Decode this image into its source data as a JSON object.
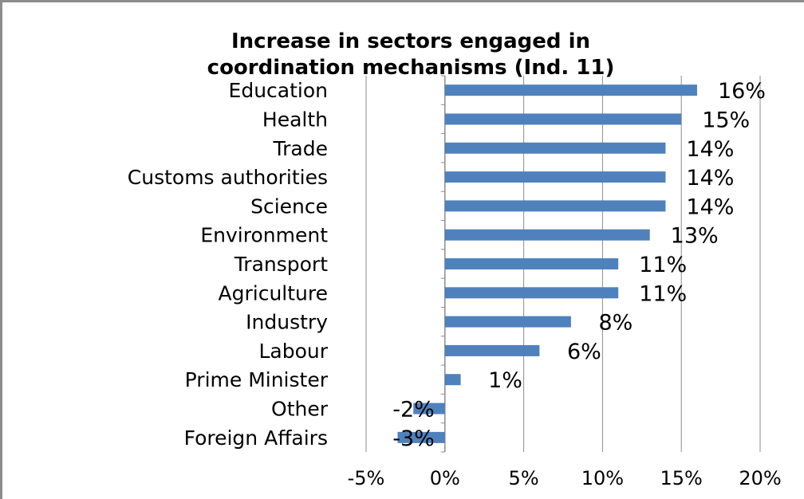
{
  "chart_data": {
    "type": "bar",
    "orientation": "horizontal",
    "title": "Increase in sectors engaged in coordination mechanisms (Ind. 11)",
    "title_lines": [
      "Increase in sectors engaged in",
      "coordination mechanisms (Ind. 11)"
    ],
    "categories": [
      "Education",
      "Health",
      "Trade",
      "Customs authorities",
      "Science",
      "Environment",
      "Transport",
      "Agriculture",
      "Industry",
      "Labour",
      "Prime Minister",
      "Other",
      "Foreign Affairs"
    ],
    "values": [
      16,
      15,
      14,
      14,
      14,
      13,
      11,
      11,
      8,
      6,
      1,
      -2,
      -3
    ],
    "value_labels": [
      "16%",
      "15%",
      "14%",
      "14%",
      "14%",
      "13%",
      "11%",
      "11%",
      "8%",
      "6%",
      "1%",
      "-2%",
      "-3%"
    ],
    "xlim": [
      -5,
      20
    ],
    "xticks": [
      -5,
      0,
      5,
      10,
      15,
      20
    ],
    "xtick_labels": [
      "-5%",
      "0%",
      "5%",
      "10%",
      "15%",
      "20%"
    ],
    "xlabel": "",
    "ylabel": "",
    "grid": "vertical",
    "legend": "none",
    "bar_color": "#4f81bd",
    "grid_color": "#8c8c8c"
  }
}
